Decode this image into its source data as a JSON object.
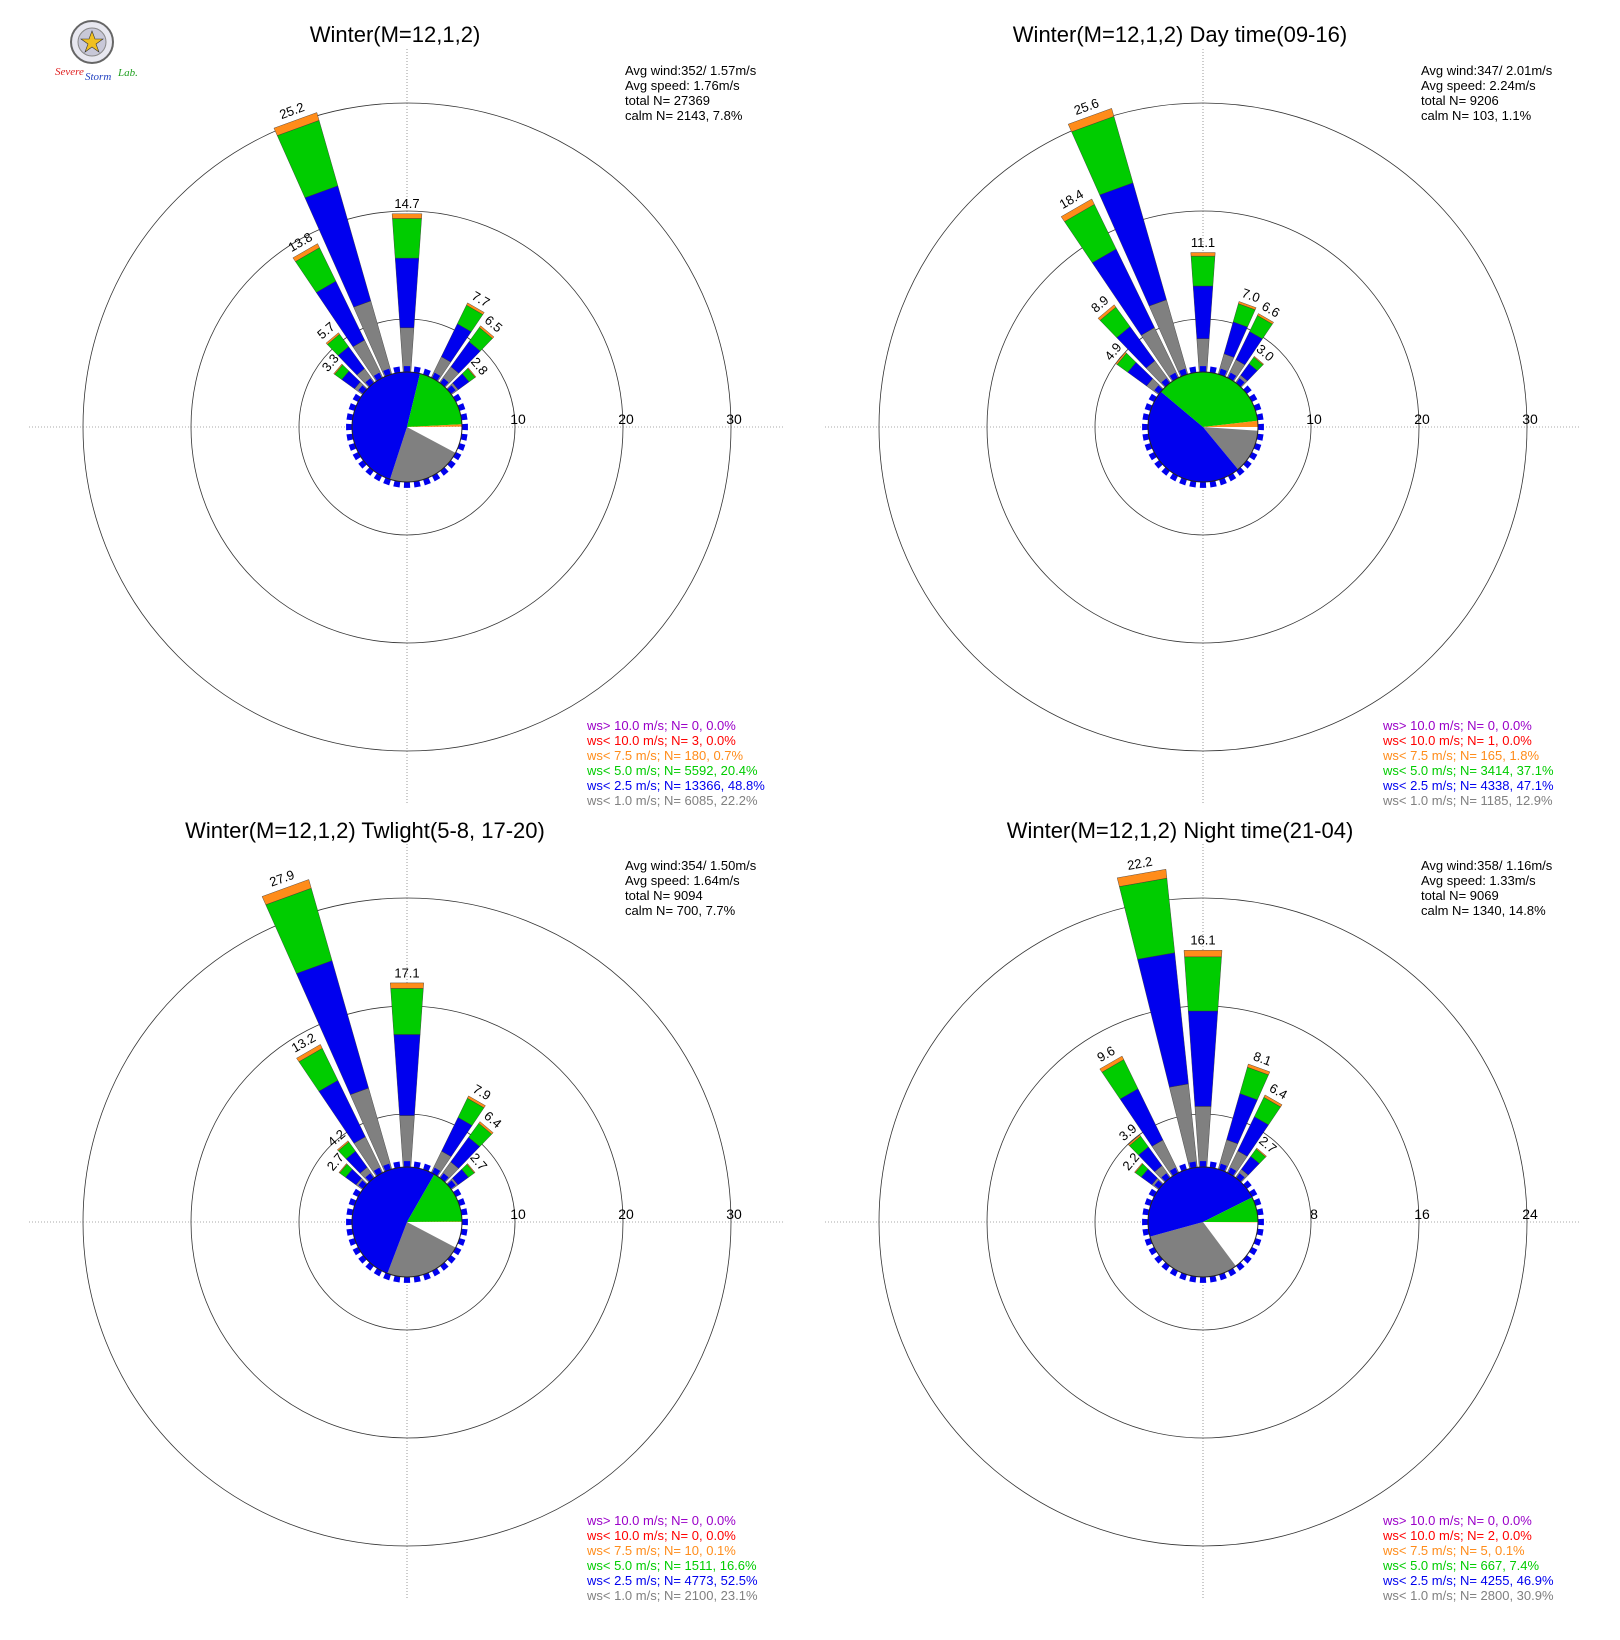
{
  "colors": {
    "gt10": "#9a00c8",
    "lt10": "#ff0000",
    "lt7_5": "#ff8c1a",
    "lt5": "#00cc00",
    "lt2_5": "#0000ee",
    "lt1": "#808080",
    "grid": "#555555"
  },
  "logo": {
    "text1": "Severe",
    "text2": "Storm",
    "text3": "Lab."
  },
  "chart_data": [
    {
      "type": "windrose",
      "title": "Winter(M=12,1,2)",
      "rings": [
        "10",
        "20",
        "30"
      ],
      "ring_max": 30,
      "info": {
        "avg_wind": "Avg wind:352/ 1.57m/s",
        "avg_speed": "Avg speed: 1.76m/s",
        "total": "total N=       27369",
        "calm": "calm N=   2143,   7.8%"
      },
      "bar_labels": [
        {
          "dir": -20,
          "value": "25.2"
        },
        {
          "dir": -30,
          "value": "13.8"
        },
        {
          "dir": 0,
          "value": "14.7"
        },
        {
          "dir": 30,
          "value": "7.7"
        },
        {
          "dir": 40,
          "value": "6.5"
        },
        {
          "dir": -40,
          "value": "5.7"
        },
        {
          "dir": -50,
          "value": "3.3"
        },
        {
          "dir": 50,
          "value": "2.8"
        }
      ],
      "legend": [
        {
          "cls": "gt10",
          "text": "ws> 10.0 m/s; N=     0,  0.0%"
        },
        {
          "cls": "lt10",
          "text": "ws< 10.0 m/s; N=     3,  0.0%"
        },
        {
          "cls": "lt7_5",
          "text": "ws<  7.5 m/s; N=   180,  0.7%"
        },
        {
          "cls": "lt5",
          "text": "ws<  5.0 m/s; N=  5592, 20.4%"
        },
        {
          "cls": "lt2_5",
          "text": "ws<  2.5 m/s; N= 13366, 48.8%"
        },
        {
          "cls": "lt1",
          "text": "ws<  1.0 m/s; N=  6085, 22.2%"
        }
      ],
      "pie": [
        0.078,
        0.222,
        0.488,
        0.204,
        0.007,
        0.0
      ]
    },
    {
      "type": "windrose",
      "title": "Winter(M=12,1,2) Day time(09-16)",
      "rings": [
        "10",
        "20",
        "30"
      ],
      "ring_max": 30,
      "info": {
        "avg_wind": "Avg wind:347/ 2.01m/s",
        "avg_speed": "Avg speed: 2.24m/s",
        "total": "total N=        9206",
        "calm": "calm N=    103,   1.1%"
      },
      "bar_labels": [
        {
          "dir": -20,
          "value": "25.6"
        },
        {
          "dir": -30,
          "value": "18.4"
        },
        {
          "dir": 0,
          "value": "11.1"
        },
        {
          "dir": -40,
          "value": "8.9"
        },
        {
          "dir": 20,
          "value": "7.0"
        },
        {
          "dir": 30,
          "value": "6.6"
        },
        {
          "dir": -50,
          "value": "4.9"
        },
        {
          "dir": 40,
          "value": "3.0"
        }
      ],
      "legend": [
        {
          "cls": "gt10",
          "text": "ws> 10.0 m/s; N=     0,  0.0%"
        },
        {
          "cls": "lt10",
          "text": "ws< 10.0 m/s; N=     1,  0.0%"
        },
        {
          "cls": "lt7_5",
          "text": "ws<  7.5 m/s; N=   165,  1.8%"
        },
        {
          "cls": "lt5",
          "text": "ws<  5.0 m/s; N=  3414, 37.1%"
        },
        {
          "cls": "lt2_5",
          "text": "ws<  2.5 m/s; N=  4338, 47.1%"
        },
        {
          "cls": "lt1",
          "text": "ws<  1.0 m/s; N=  1185, 12.9%"
        }
      ],
      "pie": [
        0.011,
        0.129,
        0.471,
        0.371,
        0.018,
        0.0
      ]
    },
    {
      "type": "windrose",
      "title": "Winter(M=12,1,2) Twlight(5-8, 17-20)",
      "rings": [
        "10",
        "20",
        "30"
      ],
      "ring_max": 30,
      "info": {
        "avg_wind": "Avg wind:354/ 1.50m/s",
        "avg_speed": "Avg speed: 1.64m/s",
        "total": "total N=        9094",
        "calm": "calm N=    700,   7.7%"
      },
      "bar_labels": [
        {
          "dir": -20,
          "value": "27.9"
        },
        {
          "dir": 0,
          "value": "17.1"
        },
        {
          "dir": -30,
          "value": "13.2"
        },
        {
          "dir": 30,
          "value": "7.9"
        },
        {
          "dir": 40,
          "value": "6.4"
        },
        {
          "dir": -40,
          "value": "4.2"
        },
        {
          "dir": -50,
          "value": "2.7"
        },
        {
          "dir": 50,
          "value": "2.7"
        }
      ],
      "legend": [
        {
          "cls": "gt10",
          "text": "ws> 10.0 m/s; N=     0,  0.0%"
        },
        {
          "cls": "lt10",
          "text": "ws< 10.0 m/s; N=     0,  0.0%"
        },
        {
          "cls": "lt7_5",
          "text": "ws<  7.5 m/s; N=    10,  0.1%"
        },
        {
          "cls": "lt5",
          "text": "ws<  5.0 m/s; N=  1511, 16.6%"
        },
        {
          "cls": "lt2_5",
          "text": "ws<  2.5 m/s; N=  4773, 52.5%"
        },
        {
          "cls": "lt1",
          "text": "ws<  1.0 m/s; N=  2100, 23.1%"
        }
      ],
      "pie": [
        0.077,
        0.231,
        0.525,
        0.166,
        0.001,
        0.0
      ]
    },
    {
      "type": "windrose",
      "title": "Winter(M=12,1,2) Night time(21-04)",
      "rings": [
        "8",
        "16",
        "24"
      ],
      "ring_max": 24,
      "info": {
        "avg_wind": "Avg wind:358/ 1.16m/s",
        "avg_speed": "Avg speed: 1.33m/s",
        "total": "total N=        9069",
        "calm": "calm N=   1340,  14.8%"
      },
      "bar_labels": [
        {
          "dir": -10,
          "value": "22.2"
        },
        {
          "dir": 0,
          "value": "16.1"
        },
        {
          "dir": 20,
          "value": "8.1"
        },
        {
          "dir": -30,
          "value": "9.6"
        },
        {
          "dir": 30,
          "value": "6.4"
        },
        {
          "dir": -40,
          "value": "3.9"
        },
        {
          "dir": 40,
          "value": "2.7"
        },
        {
          "dir": -50,
          "value": "2.2"
        }
      ],
      "legend": [
        {
          "cls": "gt10",
          "text": "ws> 10.0 m/s; N=     0,  0.0%"
        },
        {
          "cls": "lt10",
          "text": "ws< 10.0 m/s; N=     2,  0.0%"
        },
        {
          "cls": "lt7_5",
          "text": "ws<  7.5 m/s; N=     5,  0.1%"
        },
        {
          "cls": "lt5",
          "text": "ws<  5.0 m/s; N=   667,  7.4%"
        },
        {
          "cls": "lt2_5",
          "text": "ws<  2.5 m/s; N=  4255, 46.9%"
        },
        {
          "cls": "lt1",
          "text": "ws<  1.0 m/s; N=  2800, 30.9%"
        }
      ],
      "pie": [
        0.148,
        0.309,
        0.469,
        0.074,
        0.001,
        0.0
      ]
    }
  ]
}
